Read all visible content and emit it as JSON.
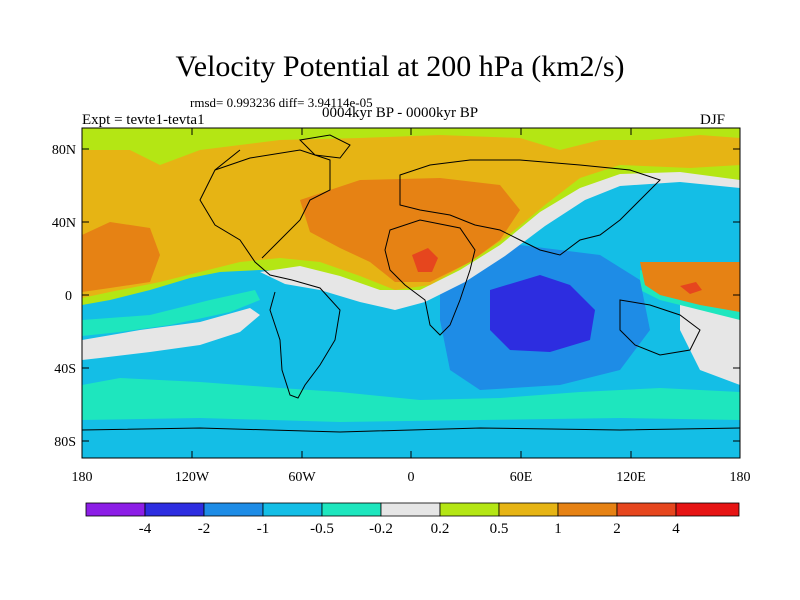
{
  "figure": {
    "title": "Velocity Potential at 200 hPa (km2/s)",
    "stats": "rmsd= 0.993236 diff= 3.94114e-05",
    "experiment": "Expt = tevte1-tevta1",
    "period": "0004kyr BP - 0000kyr BP",
    "season": "DJF"
  },
  "map": {
    "lat_ticks": [
      "80N",
      "40N",
      "0",
      "40S",
      "80S"
    ],
    "lon_ticks": [
      "180",
      "120W",
      "60W",
      "0",
      "60E",
      "120E",
      "180"
    ]
  },
  "colorbar": {
    "labels": [
      "-4",
      "-2",
      "-1",
      "-0.5",
      "-0.2",
      "0.2",
      "0.5",
      "1",
      "2",
      "4"
    ],
    "colors": [
      "#8c1ee6",
      "#2d2de0",
      "#1e8ce6",
      "#14bee6",
      "#1ee6be",
      "#e6e6e6",
      "#b4e614",
      "#e6b414",
      "#e68214",
      "#e6461e",
      "#e61414"
    ]
  },
  "field_colors": {
    "neg4": "#2d2de0",
    "neg2": "#1e8ce6",
    "neg1": "#14bee6",
    "neg05": "#1ee6be",
    "near0": "#e6e6e6",
    "pos02": "#b4e614",
    "pos05": "#e6b414",
    "pos1": "#e68214",
    "pos2": "#e6461e"
  }
}
